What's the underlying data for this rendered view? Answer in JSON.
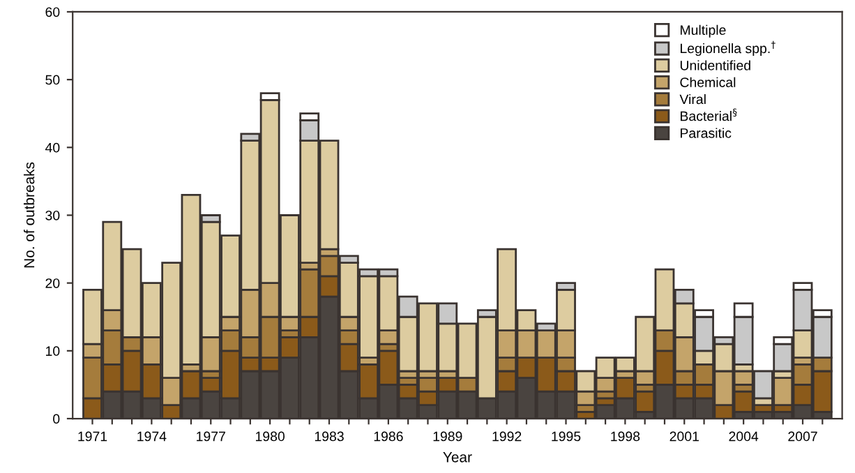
{
  "chart_data": {
    "type": "bar",
    "stacked": true,
    "xlabel": "Year",
    "ylabel": "No. of outbreaks",
    "ylim": [
      0,
      60
    ],
    "yticks": [
      0,
      10,
      20,
      30,
      40,
      50,
      60
    ],
    "legend": "top right",
    "grid": false,
    "categories": [
      "1971",
      null,
      null,
      "1974",
      null,
      null,
      "1977",
      null,
      null,
      "1980",
      null,
      null,
      "1983",
      null,
      null,
      "1986",
      null,
      null,
      "1989",
      null,
      null,
      "1992",
      null,
      null,
      "1995",
      null,
      null,
      "1998",
      null,
      null,
      "2001",
      null,
      null,
      "2004",
      null,
      null,
      "2007",
      null
    ],
    "series": [
      {
        "name": "Parasitic",
        "color": "#4a4440",
        "values": [
          0,
          4,
          4,
          3,
          0,
          3,
          4,
          3,
          7,
          7,
          9,
          12,
          18,
          7,
          3,
          5,
          3,
          2,
          4,
          4,
          3,
          4,
          6,
          4,
          4,
          0,
          2,
          3,
          1,
          5,
          3,
          3,
          0,
          1,
          1,
          1,
          2,
          1
        ]
      },
      {
        "name": "Bacterial$^{§}$",
        "color": "#8b5a1a",
        "values": [
          3,
          4,
          6,
          5,
          2,
          4,
          2,
          7,
          2,
          2,
          3,
          3,
          3,
          4,
          5,
          5,
          2,
          2,
          2,
          0,
          0,
          3,
          3,
          5,
          3,
          1,
          1,
          3,
          3,
          5,
          2,
          2,
          2,
          3,
          1,
          1,
          3,
          6
        ]
      },
      {
        "name": "Viral",
        "color": "#a57c3c",
        "values": [
          6,
          5,
          2,
          0,
          0,
          0,
          1,
          3,
          3,
          6,
          1,
          7,
          3,
          2,
          0,
          1,
          1,
          2,
          0,
          2,
          0,
          2,
          0,
          0,
          2,
          1,
          1,
          0,
          1,
          3,
          2,
          3,
          0,
          1,
          0,
          0,
          3,
          2
        ]
      },
      {
        "name": "Chemical",
        "color": "#c4a46a",
        "values": [
          2,
          3,
          0,
          4,
          4,
          1,
          5,
          2,
          7,
          5,
          2,
          1,
          1,
          2,
          1,
          2,
          1,
          1,
          1,
          0,
          0,
          4,
          4,
          4,
          4,
          2,
          2,
          1,
          2,
          0,
          5,
          0,
          5,
          2,
          0,
          4,
          1,
          0
        ]
      },
      {
        "name": "Unidentified",
        "color": "#ddcca0",
        "values": [
          8,
          13,
          13,
          8,
          17,
          25,
          17,
          12,
          22,
          27,
          15,
          18,
          16,
          8,
          12,
          8,
          8,
          10,
          7,
          8,
          12,
          12,
          3,
          0,
          6,
          3,
          3,
          2,
          8,
          9,
          5,
          2,
          4,
          1,
          1,
          1,
          4,
          0
        ]
      },
      {
        "name": "Legionella spp.$^{†}$",
        "color": "#c8c8c8",
        "values": [
          0,
          0,
          0,
          0,
          0,
          0,
          1,
          0,
          1,
          0,
          0,
          3,
          0,
          1,
          1,
          1,
          3,
          0,
          3,
          0,
          1,
          0,
          0,
          1,
          1,
          0,
          0,
          0,
          0,
          0,
          2,
          5,
          1,
          7,
          4,
          4,
          6,
          6
        ]
      },
      {
        "name": "Multiple",
        "color": "#ffffff",
        "values": [
          0,
          0,
          0,
          0,
          0,
          0,
          0,
          0,
          0,
          1,
          0,
          1,
          0,
          0,
          0,
          0,
          0,
          0,
          0,
          0,
          0,
          0,
          0,
          0,
          0,
          0,
          0,
          0,
          0,
          0,
          0,
          1,
          0,
          2,
          0,
          1,
          1,
          1
        ]
      }
    ]
  }
}
